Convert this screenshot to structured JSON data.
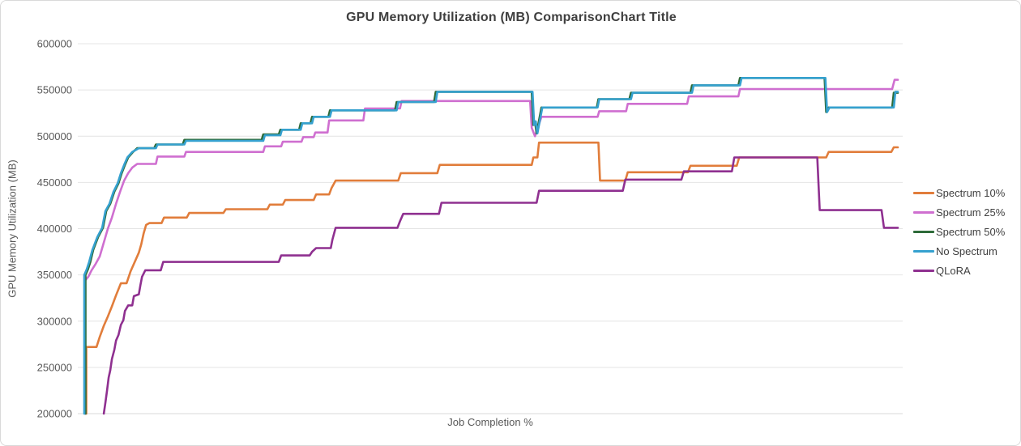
{
  "colors": {
    "title": "#3f3f3f",
    "axis_text": "#595959",
    "gridline": "#e4e4e4",
    "axis_line": "#d9d9d9",
    "background": "#ffffff"
  },
  "chart_data": {
    "type": "line",
    "title": "GPU Memory Utilization (MB) ComparisonChart Title",
    "xlabel": "Job Completion %",
    "ylabel": "GPU Memory Utilization (MB)",
    "xlim": [
      0,
      100
    ],
    "ylim": [
      200000,
      600000
    ],
    "yticks": [
      600000,
      550000,
      500000,
      450000,
      400000,
      350000,
      300000,
      250000,
      200000
    ],
    "xticks_visible": false,
    "grid": "horizontal",
    "legend_position": "right",
    "line_style": "step-like utilization traces, x = job completion percent (unlabeled axis)",
    "series": [
      {
        "name": "Spectrum 10%",
        "color": "#e17d3b",
        "points": [
          [
            0.25,
            200000
          ],
          [
            0.25,
            272000
          ],
          [
            1.5,
            272000
          ],
          [
            1.9,
            283000
          ],
          [
            2.4,
            295000
          ],
          [
            2.9,
            305000
          ],
          [
            3.4,
            316000
          ],
          [
            3.9,
            328000
          ],
          [
            4.5,
            341000
          ],
          [
            5.2,
            341000
          ],
          [
            5.7,
            354000
          ],
          [
            6.3,
            366000
          ],
          [
            6.7,
            374000
          ],
          [
            7.0,
            383000
          ],
          [
            7.3,
            395000
          ],
          [
            7.6,
            404000
          ],
          [
            8.0,
            406000
          ],
          [
            9.5,
            406000
          ],
          [
            9.8,
            412000
          ],
          [
            12.6,
            412000
          ],
          [
            12.9,
            417000
          ],
          [
            17.1,
            417000
          ],
          [
            17.4,
            421000
          ],
          [
            22.5,
            421000
          ],
          [
            22.8,
            426000
          ],
          [
            24.4,
            426000
          ],
          [
            24.7,
            431000
          ],
          [
            28.2,
            431000
          ],
          [
            28.5,
            437000
          ],
          [
            30.1,
            437000
          ],
          [
            30.4,
            444000
          ],
          [
            30.9,
            452000
          ],
          [
            38.6,
            452000
          ],
          [
            38.9,
            460000
          ],
          [
            43.4,
            460000
          ],
          [
            43.7,
            469000
          ],
          [
            55.0,
            469000
          ],
          [
            55.2,
            477000
          ],
          [
            55.7,
            477000
          ],
          [
            55.9,
            493000
          ],
          [
            63.2,
            493000
          ],
          [
            63.4,
            452000
          ],
          [
            66.5,
            452000
          ],
          [
            66.8,
            461000
          ],
          [
            74.2,
            461000
          ],
          [
            74.5,
            468000
          ],
          [
            80.2,
            468000
          ],
          [
            80.5,
            477000
          ],
          [
            91.2,
            477000
          ],
          [
            91.5,
            483000
          ],
          [
            99.2,
            483000
          ],
          [
            99.5,
            488000
          ],
          [
            100,
            488000
          ]
        ]
      },
      {
        "name": "Spectrum 25%",
        "color": "#cf6fd0",
        "points": [
          [
            0.1,
            200000
          ],
          [
            0.1,
            344000
          ],
          [
            0.5,
            348000
          ],
          [
            0.9,
            355000
          ],
          [
            1.4,
            362000
          ],
          [
            1.9,
            370000
          ],
          [
            2.4,
            385000
          ],
          [
            2.9,
            400000
          ],
          [
            3.4,
            412000
          ],
          [
            3.9,
            427000
          ],
          [
            4.4,
            440000
          ],
          [
            4.9,
            452000
          ],
          [
            5.4,
            460000
          ],
          [
            5.9,
            466000
          ],
          [
            6.5,
            470000
          ],
          [
            8.8,
            470000
          ],
          [
            9.0,
            478000
          ],
          [
            12.3,
            478000
          ],
          [
            12.5,
            483000
          ],
          [
            22.0,
            483000
          ],
          [
            22.2,
            489000
          ],
          [
            24.2,
            489000
          ],
          [
            24.4,
            494000
          ],
          [
            26.7,
            494000
          ],
          [
            26.9,
            499000
          ],
          [
            28.2,
            499000
          ],
          [
            28.4,
            504000
          ],
          [
            29.9,
            504000
          ],
          [
            30.1,
            517000
          ],
          [
            34.3,
            517000
          ],
          [
            34.5,
            530000
          ],
          [
            38.8,
            530000
          ],
          [
            39.0,
            538000
          ],
          [
            54.8,
            538000
          ],
          [
            55.0,
            509000
          ],
          [
            55.4,
            500000
          ],
          [
            56.2,
            521000
          ],
          [
            63.1,
            521000
          ],
          [
            63.3,
            527000
          ],
          [
            66.6,
            527000
          ],
          [
            66.8,
            535000
          ],
          [
            74.1,
            535000
          ],
          [
            74.3,
            543000
          ],
          [
            80.4,
            543000
          ],
          [
            80.6,
            551000
          ],
          [
            99.3,
            551000
          ],
          [
            99.6,
            561000
          ],
          [
            100,
            561000
          ]
        ]
      },
      {
        "name": "Spectrum 50%",
        "color": "#2e6b39",
        "points": [
          [
            0.15,
            200000
          ],
          [
            0.15,
            350000
          ],
          [
            0.45,
            356000
          ],
          [
            0.75,
            364000
          ],
          [
            1.1,
            377000
          ],
          [
            1.7,
            391000
          ],
          [
            2.3,
            401000
          ],
          [
            2.7,
            419000
          ],
          [
            3.2,
            427000
          ],
          [
            3.7,
            440000
          ],
          [
            4.2,
            449000
          ],
          [
            4.6,
            460000
          ],
          [
            5.0,
            469000
          ],
          [
            5.4,
            477000
          ],
          [
            6.0,
            483000
          ],
          [
            6.5,
            487000
          ],
          [
            8.6,
            487000
          ],
          [
            8.8,
            491000
          ],
          [
            12.1,
            491000
          ],
          [
            12.3,
            496000
          ],
          [
            21.8,
            496000
          ],
          [
            22.0,
            502000
          ],
          [
            23.9,
            502000
          ],
          [
            24.1,
            507000
          ],
          [
            26.4,
            507000
          ],
          [
            26.6,
            514000
          ],
          [
            27.8,
            514000
          ],
          [
            28.0,
            521000
          ],
          [
            30.0,
            521000
          ],
          [
            30.2,
            528000
          ],
          [
            38.2,
            528000
          ],
          [
            38.4,
            537000
          ],
          [
            43.0,
            537000
          ],
          [
            43.2,
            548000
          ],
          [
            55.0,
            548000
          ],
          [
            55.2,
            512000
          ],
          [
            55.4,
            516000
          ],
          [
            55.6,
            503000
          ],
          [
            56.2,
            531000
          ],
          [
            63.0,
            531000
          ],
          [
            63.2,
            540000
          ],
          [
            67.0,
            540000
          ],
          [
            67.2,
            547000
          ],
          [
            74.5,
            547000
          ],
          [
            74.7,
            555000
          ],
          [
            80.4,
            555000
          ],
          [
            80.6,
            563000
          ],
          [
            91.0,
            563000
          ],
          [
            91.2,
            526000
          ],
          [
            91.5,
            531000
          ],
          [
            99.3,
            531000
          ],
          [
            99.5,
            547000
          ],
          [
            100,
            547000
          ]
        ]
      },
      {
        "name": "No Spectrum",
        "color": "#35a1cf",
        "points": [
          [
            0,
            200000
          ],
          [
            0,
            350000
          ],
          [
            0.3,
            356000
          ],
          [
            0.6,
            364000
          ],
          [
            1.0,
            377000
          ],
          [
            1.6,
            391000
          ],
          [
            2.2,
            401000
          ],
          [
            2.6,
            419000
          ],
          [
            3.1,
            427000
          ],
          [
            3.6,
            440000
          ],
          [
            4.1,
            449000
          ],
          [
            4.5,
            460000
          ],
          [
            4.9,
            469000
          ],
          [
            5.3,
            477000
          ],
          [
            5.9,
            483000
          ],
          [
            6.7,
            487000
          ],
          [
            8.8,
            487000
          ],
          [
            9.0,
            491000
          ],
          [
            12.3,
            491000
          ],
          [
            12.5,
            495000
          ],
          [
            22.0,
            495000
          ],
          [
            22.2,
            501000
          ],
          [
            24.1,
            501000
          ],
          [
            24.3,
            507000
          ],
          [
            26.6,
            507000
          ],
          [
            26.8,
            514000
          ],
          [
            28.0,
            514000
          ],
          [
            28.2,
            521000
          ],
          [
            30.2,
            521000
          ],
          [
            30.4,
            528000
          ],
          [
            38.4,
            528000
          ],
          [
            38.6,
            537000
          ],
          [
            43.2,
            537000
          ],
          [
            43.4,
            548000
          ],
          [
            55.1,
            548000
          ],
          [
            55.3,
            512000
          ],
          [
            55.5,
            516000
          ],
          [
            55.7,
            503000
          ],
          [
            56.3,
            531000
          ],
          [
            63.1,
            531000
          ],
          [
            63.3,
            540000
          ],
          [
            67.2,
            540000
          ],
          [
            67.4,
            547000
          ],
          [
            74.7,
            547000
          ],
          [
            74.9,
            555000
          ],
          [
            80.6,
            555000
          ],
          [
            80.8,
            563000
          ],
          [
            91.1,
            563000
          ],
          [
            91.3,
            526000
          ],
          [
            91.6,
            531000
          ],
          [
            99.5,
            531000
          ],
          [
            99.7,
            548000
          ],
          [
            100,
            548000
          ]
        ]
      },
      {
        "name": "QLoRA",
        "color": "#8f3090",
        "points": [
          [
            2.4,
            200000
          ],
          [
            2.6,
            212000
          ],
          [
            2.8,
            225000
          ],
          [
            3.0,
            239000
          ],
          [
            3.2,
            247000
          ],
          [
            3.4,
            259000
          ],
          [
            3.7,
            269000
          ],
          [
            3.9,
            279000
          ],
          [
            4.2,
            285000
          ],
          [
            4.5,
            296000
          ],
          [
            4.8,
            301000
          ],
          [
            5.0,
            311000
          ],
          [
            5.4,
            317000
          ],
          [
            5.9,
            317000
          ],
          [
            6.1,
            327000
          ],
          [
            6.7,
            329000
          ],
          [
            6.9,
            339000
          ],
          [
            7.1,
            348000
          ],
          [
            7.5,
            355000
          ],
          [
            9.4,
            355000
          ],
          [
            9.7,
            364000
          ],
          [
            23.9,
            364000
          ],
          [
            24.2,
            371000
          ],
          [
            27.7,
            371000
          ],
          [
            28.0,
            375000
          ],
          [
            28.5,
            379000
          ],
          [
            30.3,
            379000
          ],
          [
            30.5,
            388000
          ],
          [
            30.9,
            401000
          ],
          [
            38.5,
            401000
          ],
          [
            38.8,
            408000
          ],
          [
            39.2,
            416000
          ],
          [
            43.6,
            416000
          ],
          [
            43.9,
            428000
          ],
          [
            55.6,
            428000
          ],
          [
            55.9,
            441000
          ],
          [
            66.2,
            441000
          ],
          [
            66.5,
            453000
          ],
          [
            73.4,
            453000
          ],
          [
            73.7,
            462000
          ],
          [
            79.6,
            462000
          ],
          [
            79.9,
            477000
          ],
          [
            90.1,
            477000
          ],
          [
            90.4,
            420000
          ],
          [
            98.0,
            420000
          ],
          [
            98.3,
            401000
          ],
          [
            100,
            401000
          ]
        ]
      }
    ]
  }
}
